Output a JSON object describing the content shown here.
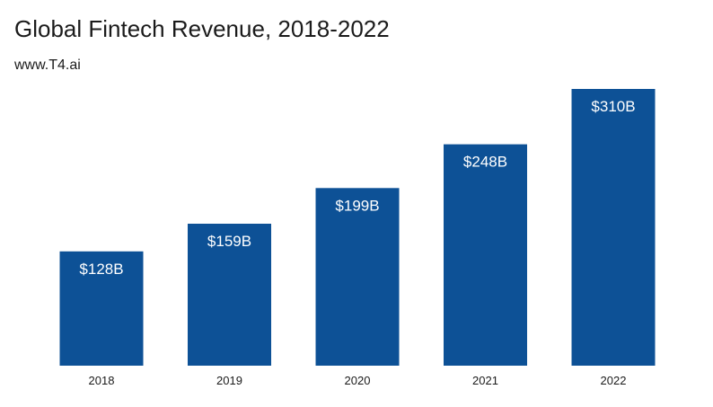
{
  "chart_data": {
    "type": "bar",
    "title": "Global Fintech Revenue, 2018-2022",
    "subtitle": "www.T4.ai",
    "categories": [
      "2018",
      "2019",
      "2020",
      "2021",
      "2022"
    ],
    "values": [
      128,
      159,
      199,
      248,
      310
    ],
    "data_labels": [
      "$128B",
      "$159B",
      "$199B",
      "$248B",
      "$310B"
    ],
    "xlabel": "",
    "ylabel": "",
    "ylim": [
      0,
      310
    ],
    "grid": false,
    "legend": "none",
    "colors": {
      "bar": "#0d5196",
      "bar_label": "#ffffff",
      "text": "#1b1b1b"
    }
  }
}
